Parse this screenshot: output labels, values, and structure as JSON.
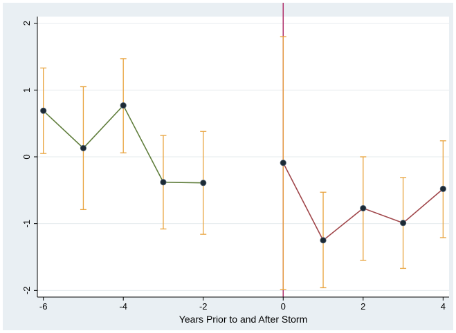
{
  "chart_data": {
    "type": "line",
    "title": "",
    "xlabel": "Years Prior to and After Storm",
    "ylabel": "",
    "xlim": [
      -6.15,
      4.15
    ],
    "ylim": [
      -2.1,
      2.1
    ],
    "x_ticks": [
      -6,
      -4,
      -2,
      0,
      2,
      4
    ],
    "x_tick_labels": [
      "-6",
      "-4",
      "-2",
      "0",
      "2",
      "4"
    ],
    "y_ticks": [
      -2,
      -1,
      0,
      1,
      2
    ],
    "y_tick_labels": [
      "-2",
      "-1",
      "0",
      "1",
      "2"
    ],
    "grid": true,
    "event_line_x": 0,
    "series": [
      {
        "color": "#5f7d3b",
        "points": [
          {
            "x": -6,
            "y": 0.69,
            "lo": 0.05,
            "hi": 1.33
          },
          {
            "x": -5,
            "y": 0.13,
            "lo": -0.79,
            "hi": 1.05
          },
          {
            "x": -4,
            "y": 0.77,
            "lo": 0.06,
            "hi": 1.47
          },
          {
            "x": -3,
            "y": -0.38,
            "lo": -1.08,
            "hi": 0.32
          },
          {
            "x": -2,
            "y": -0.39,
            "lo": -1.16,
            "hi": 0.38
          }
        ]
      },
      {
        "color": "#a0464a",
        "points": [
          {
            "x": 0,
            "y": -0.09,
            "lo": -1.99,
            "hi": 1.8
          },
          {
            "x": 1,
            "y": -1.25,
            "lo": -1.96,
            "hi": -0.53
          },
          {
            "x": 2,
            "y": -0.77,
            "lo": -1.55,
            "hi": 0.0
          },
          {
            "x": 3,
            "y": -0.99,
            "lo": -1.67,
            "hi": -0.31
          },
          {
            "x": 4,
            "y": -0.48,
            "lo": -1.21,
            "hi": 0.24
          }
        ]
      }
    ],
    "errorbar_color": "#e8a33d",
    "marker_color": "#1c2a36",
    "event_line_color": "#b0306a"
  }
}
